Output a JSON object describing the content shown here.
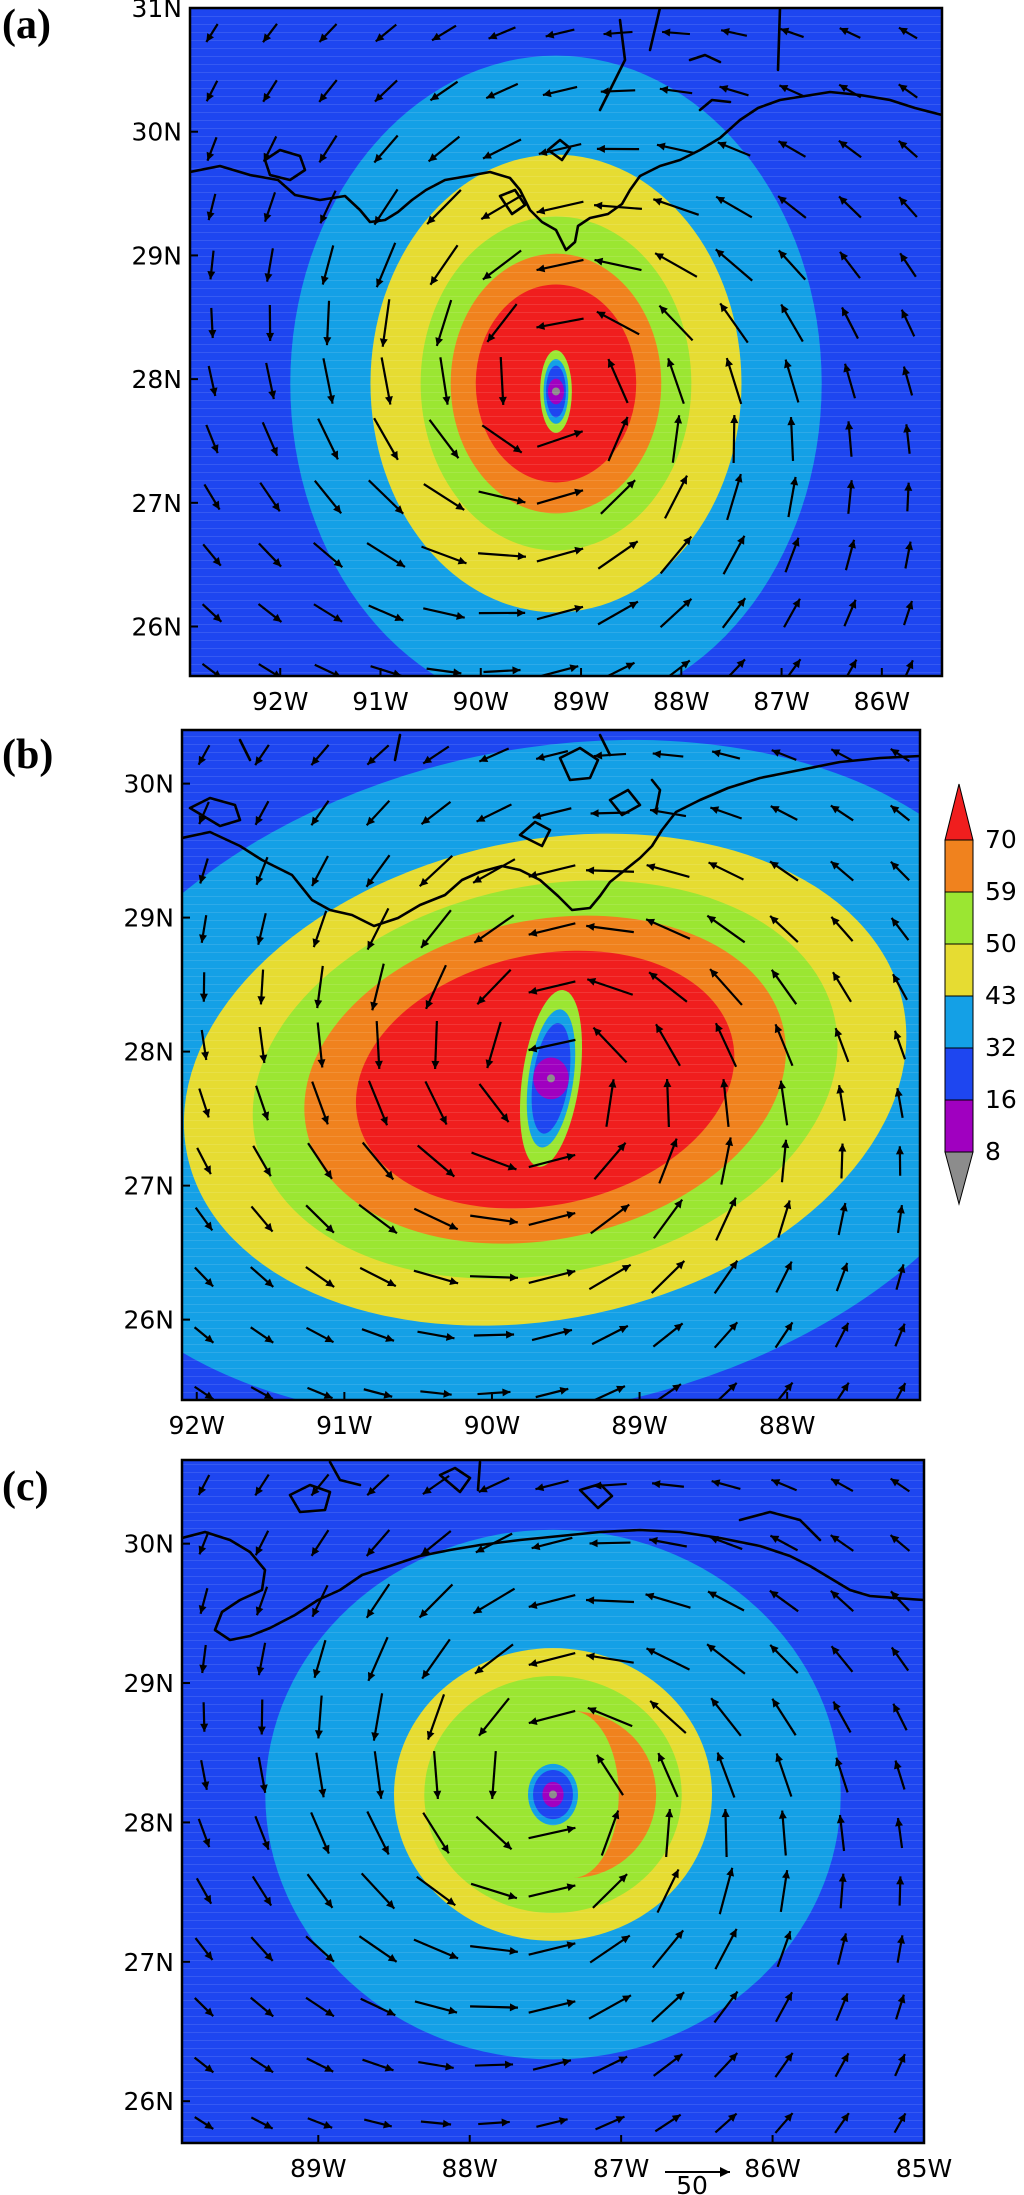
{
  "colors": {
    "8": "#8c8c8c",
    "16": "#a000c0",
    "32": "#1e46f0",
    "43": "#14a0e6",
    "50": "#e6dc32",
    "59": "#9be632",
    "70": "#f0821e",
    "max": "#f01e1e"
  },
  "colorbar": {
    "labels": [
      "70",
      "59",
      "50",
      "43",
      "32",
      "16",
      "8"
    ]
  },
  "vector_reference": {
    "label": "50"
  },
  "chart_data": [
    {
      "type": "heatmap",
      "panel_label": "(a)",
      "description_value": "wind speed contours with wind vectors",
      "xlim": [
        -92.9,
        -85.4
      ],
      "ylim": [
        25.6,
        31.0
      ],
      "x_ticks": [
        "92W",
        "91W",
        "90W",
        "89W",
        "88W",
        "87W",
        "86W"
      ],
      "y_ticks": [
        "26N",
        "27N",
        "28N",
        "29N",
        "30N",
        "31N"
      ],
      "center": [
        -89.25,
        27.9
      ],
      "contour_radii_deg": {
        "43": 2.65,
        "50": 1.85,
        "59": 1.35,
        "70": 1.05,
        "max": 0.8,
        "32": 0.22,
        "16": 0.08
      }
    },
    {
      "type": "heatmap",
      "panel_label": "(b)",
      "description_value": "wind speed contours with wind vectors",
      "xlim": [
        -92.1,
        -87.1
      ],
      "ylim": [
        25.4,
        30.4
      ],
      "x_ticks": [
        "92W",
        "91W",
        "90W",
        "89W",
        "88W"
      ],
      "y_ticks": [
        "26N",
        "27N",
        "28N",
        "29N",
        "30N"
      ],
      "center": [
        -89.6,
        27.8
      ],
      "contour_radii_deg": {
        "43": 2.9,
        "50": 2.1,
        "59": 1.7,
        "70": 1.4,
        "max": 1.1,
        "32": 0.32,
        "16": 0.12
      }
    },
    {
      "type": "heatmap",
      "panel_label": "(c)",
      "description_value": "wind speed contours with wind vectors",
      "xlim": [
        -89.9,
        -85.0
      ],
      "ylim": [
        25.7,
        30.6
      ],
      "x_ticks": [
        "89W",
        "88W",
        "87W",
        "86W",
        "85W"
      ],
      "y_ticks": [
        "26N",
        "27N",
        "28N",
        "29N",
        "30N"
      ],
      "center": [
        -87.45,
        28.2
      ],
      "contour_radii_deg": {
        "43": 1.9,
        "50": 1.05,
        "59": 0.85,
        "70": 0.0,
        "max": 0.0,
        "32": 0.22,
        "16": 0.07
      }
    }
  ]
}
